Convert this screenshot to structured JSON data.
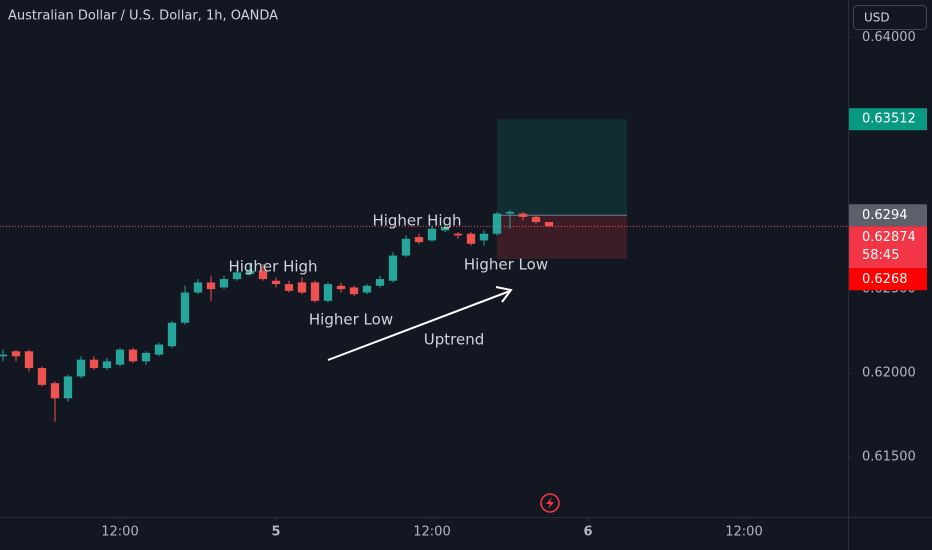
{
  "chart_data": {
    "type": "candlestick",
    "title": "Australian Dollar / U.S. Dollar, 1h, OANDA",
    "currency": "USD",
    "up_color": "#26a69a",
    "down_color": "#ef5350",
    "grid": false,
    "x": [
      3,
      4,
      5,
      6,
      7,
      8,
      9,
      10,
      11,
      12,
      13,
      14,
      15,
      16,
      17,
      18,
      19,
      20,
      21,
      22,
      23,
      24,
      25,
      26,
      27,
      28,
      29,
      30,
      31,
      32,
      33,
      34,
      35,
      36,
      37,
      38,
      39,
      40,
      41,
      42,
      43,
      44,
      45
    ],
    "open": [
      0.621,
      0.6213,
      0.6213,
      0.6203,
      0.6194,
      0.6185,
      0.6198,
      0.6208,
      0.6203,
      0.6205,
      0.6214,
      0.6207,
      0.6211,
      0.6216,
      0.623,
      0.6248,
      0.6254,
      0.6251,
      0.6256,
      0.6259,
      0.6261,
      0.6255,
      0.6253,
      0.6254,
      0.6254,
      0.6243,
      0.6252,
      0.6251,
      0.6248,
      0.6252,
      0.6255,
      0.627,
      0.6281,
      0.6279,
      0.6285,
      0.6283,
      0.6283,
      0.6279,
      0.6283,
      0.6295,
      0.6295,
      0.6293,
      0.629
    ],
    "high": [
      0.6214,
      0.6214,
      0.6214,
      0.6204,
      0.6195,
      0.6199,
      0.621,
      0.621,
      0.6209,
      0.6215,
      0.6215,
      0.6213,
      0.6218,
      0.6231,
      0.6252,
      0.6256,
      0.6258,
      0.6258,
      0.6261,
      0.6266,
      0.6265,
      0.6257,
      0.6255,
      0.6257,
      0.6255,
      0.6254,
      0.6254,
      0.6252,
      0.6253,
      0.6258,
      0.6272,
      0.6282,
      0.6283,
      0.6288,
      0.6289,
      0.6284,
      0.6284,
      0.6285,
      0.6296,
      0.6297,
      0.6296,
      0.6294,
      0.629
    ],
    "low": [
      0.6207,
      0.6207,
      0.6201,
      0.6192,
      0.6171,
      0.6183,
      0.6197,
      0.6202,
      0.6202,
      0.6204,
      0.6206,
      0.6205,
      0.621,
      0.6215,
      0.6229,
      0.6247,
      0.6243,
      0.625,
      0.6255,
      0.6258,
      0.6255,
      0.6251,
      0.6248,
      0.6247,
      0.6242,
      0.6242,
      0.6248,
      0.6246,
      0.6247,
      0.6251,
      0.6254,
      0.6269,
      0.6277,
      0.6278,
      0.6284,
      0.628,
      0.6276,
      0.6276,
      0.6282,
      0.6286,
      0.6291,
      0.6289,
      0.6287
    ],
    "close": [
      0.6211,
      0.621,
      0.6203,
      0.6193,
      0.6185,
      0.6198,
      0.6208,
      0.6203,
      0.6207,
      0.6214,
      0.6207,
      0.6212,
      0.6217,
      0.623,
      0.6248,
      0.6254,
      0.625,
      0.6256,
      0.626,
      0.6261,
      0.6256,
      0.6253,
      0.6249,
      0.6248,
      0.6243,
      0.6253,
      0.625,
      0.6247,
      0.6252,
      0.6256,
      0.627,
      0.628,
      0.6278,
      0.6286,
      0.6287,
      0.6282,
      0.6277,
      0.6283,
      0.6295,
      0.6296,
      0.6293,
      0.629,
      0.62874
    ],
    "xlim": [
      2.77,
      68
    ],
    "xticks": [
      {
        "value": 12,
        "label": "12:00"
      },
      {
        "value": 24,
        "label": "5"
      },
      {
        "value": 36,
        "label": "12:00"
      },
      {
        "value": 48,
        "label": "6"
      },
      {
        "value": 60,
        "label": "12:00"
      }
    ],
    "ylim": [
      0.61143,
      0.64222
    ],
    "yticks": [
      {
        "value": 0.615,
        "label": "0.61500"
      },
      {
        "value": 0.62,
        "label": "0.62000"
      },
      {
        "value": 0.625,
        "label": "0.62500"
      },
      {
        "value": 0.64,
        "label": "0.64000"
      }
    ],
    "current_price": 0.62874,
    "countdown": "58:45",
    "position": {
      "entry": 0.6294,
      "target": 0.63512,
      "stop": 0.6268,
      "x_start": 41,
      "x_end": 51
    },
    "annotations": [
      "Higher High",
      "Higher Low",
      "Higher High",
      "Higher Low",
      "Uptrend"
    ]
  }
}
